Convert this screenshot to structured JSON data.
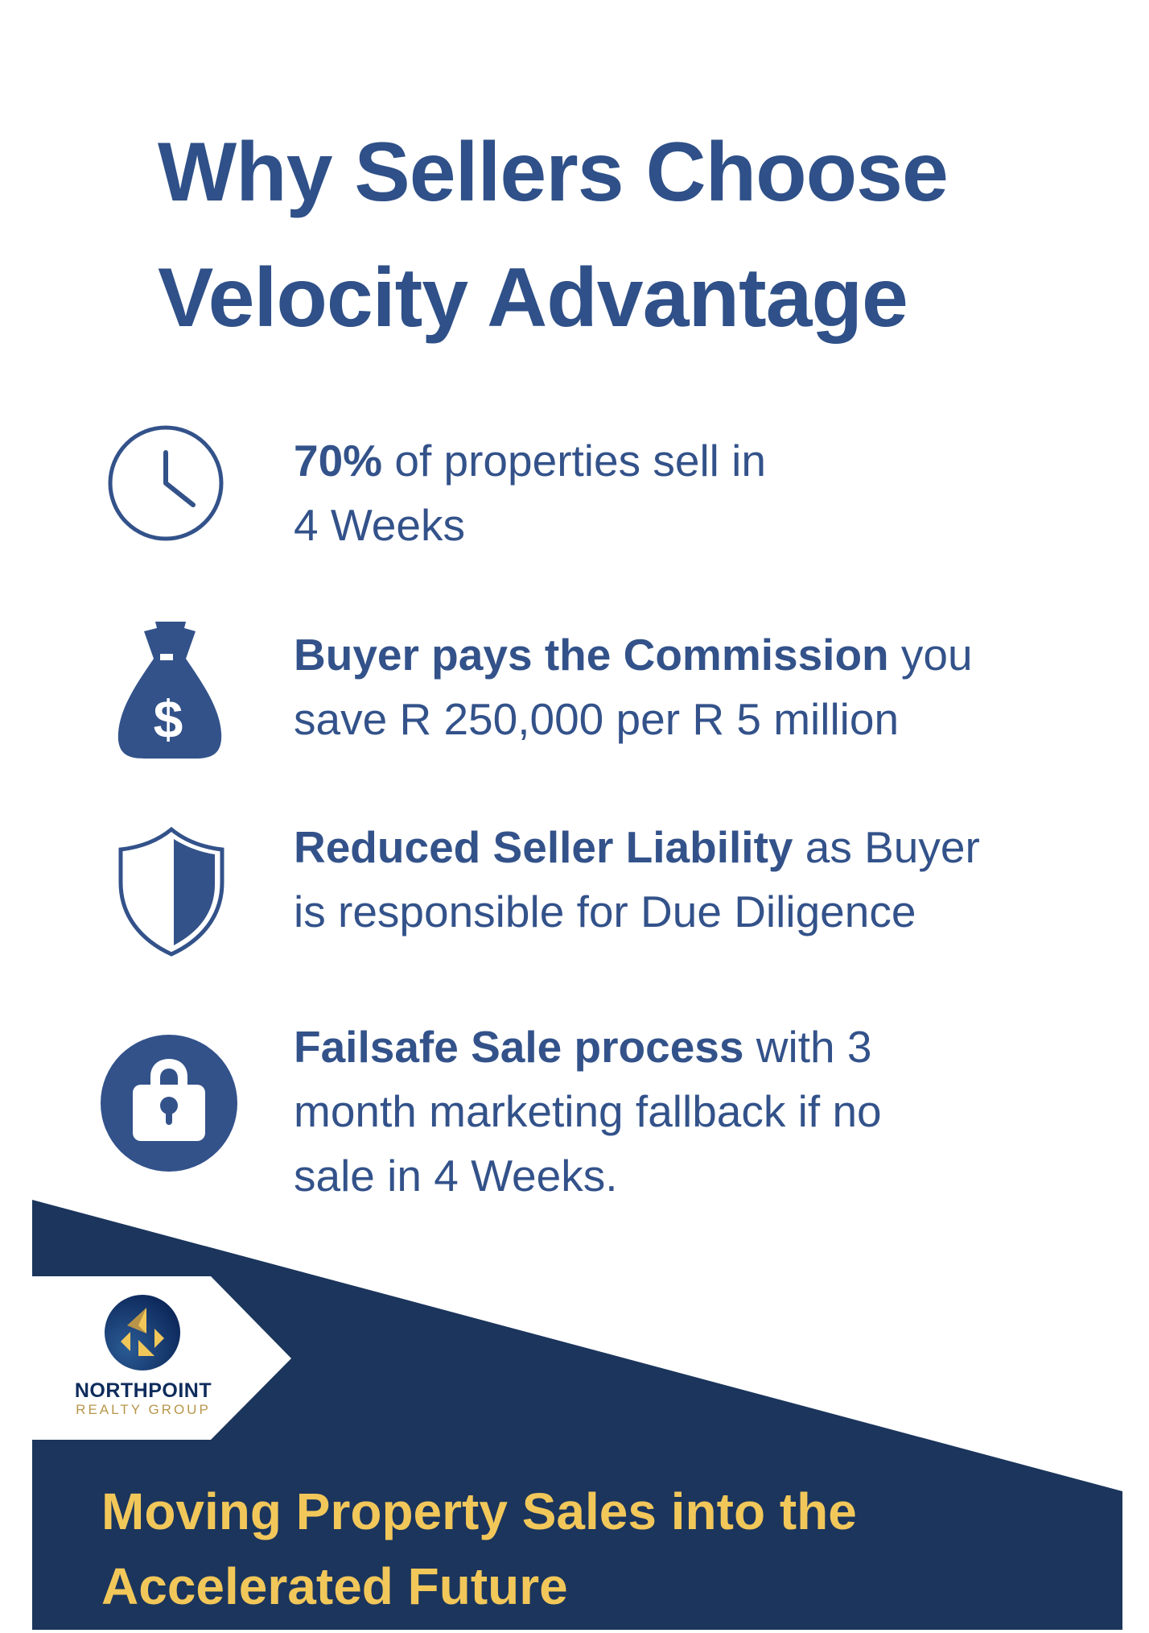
{
  "title": {
    "line1": "Why Sellers Choose",
    "line2": "Velocity Advantage"
  },
  "items": [
    {
      "icon": "clock-icon",
      "lines": [
        {
          "bold": "70%",
          "rest": " of properties sell in"
        },
        {
          "bold": "",
          "rest": "4 Weeks"
        }
      ]
    },
    {
      "icon": "money-bag-icon",
      "lines": [
        {
          "bold": "Buyer pays the Commission",
          "rest": " you"
        },
        {
          "bold": "",
          "rest": "save R 250,000 per R 5 million"
        }
      ]
    },
    {
      "icon": "shield-icon",
      "lines": [
        {
          "bold": "Reduced Seller Liability",
          "rest": " as Buyer"
        },
        {
          "bold": "",
          "rest": "is responsible for Due Diligence"
        }
      ]
    },
    {
      "icon": "lock-icon",
      "lines": [
        {
          "bold": "Failsafe Sale process",
          "rest": " with 3"
        },
        {
          "bold": "",
          "rest": "month marketing fallback if no"
        },
        {
          "bold": "",
          "rest": "sale in 4 Weeks."
        }
      ]
    }
  ],
  "logo": {
    "name": "NORTHPOINT",
    "subtitle": "REALTY GROUP"
  },
  "tagline": {
    "line1": "Moving Property Sales into the",
    "line2": "Accelerated Future"
  },
  "colors": {
    "primary": "#33528a",
    "navy": "#1b355c",
    "gold": "#f2c75a"
  }
}
